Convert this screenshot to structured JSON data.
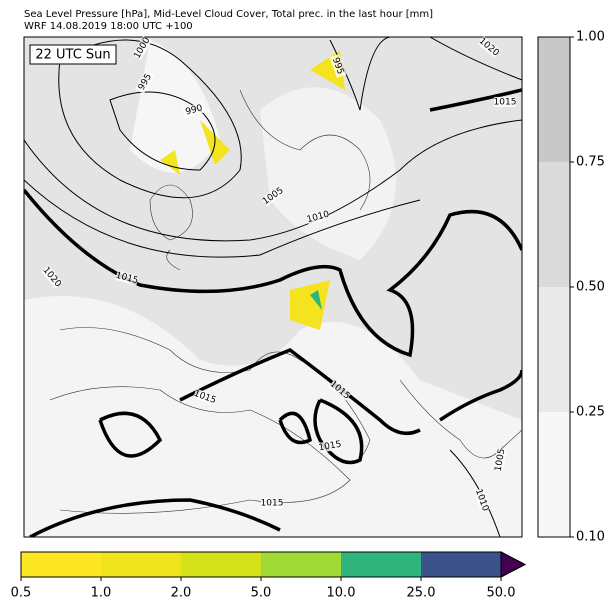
{
  "header": {
    "title": "Sea Level Pressure [hPa], Mid-Level Cloud Cover, Total prec. in the last hour [mm]",
    "subtitle": "WRF 14.08.2019 18:00 UTC +100"
  },
  "map": {
    "time_label": "22 UTC Sun",
    "isobar_labels": [
      "1000",
      "995",
      "990",
      "995",
      "1005",
      "1010",
      "1015",
      "1020",
      "1020",
      "1015",
      "1015",
      "1015",
      "1015",
      "1015",
      "1005",
      "1010"
    ]
  },
  "cloud_colorbar": {
    "ticks": [
      "0.10",
      "0.25",
      "0.50",
      "0.75",
      "1.00"
    ],
    "colors": [
      "#f7f7f7",
      "#e9e9e9",
      "#dadada",
      "#c8c8c8"
    ]
  },
  "precip_colorbar": {
    "ticks": [
      "0.5",
      "1.0",
      "2.0",
      "5.0",
      "10.0",
      "25.0",
      "50.0"
    ],
    "colors": [
      "#fde725",
      "#efe51c",
      "#d5e21a",
      "#a0da39",
      "#2fb47c",
      "#3b528b"
    ],
    "extend_color": "#440154"
  }
}
